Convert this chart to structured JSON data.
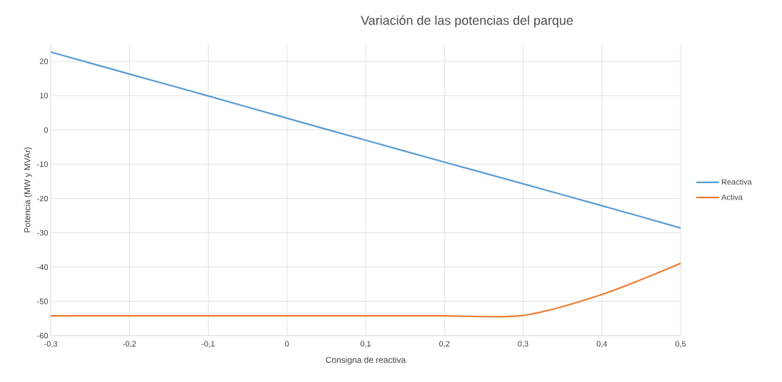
{
  "chart_data": {
    "type": "line",
    "title": "Variación de las potencias del parque",
    "xlabel": "Consigna de reactiva",
    "ylabel": "Potencia (MW y MVAr)",
    "x": [
      -0.3,
      -0.2,
      -0.1,
      0,
      0.1,
      0.2,
      0.3,
      0.4,
      0.5
    ],
    "series": [
      {
        "name": "Reactiva",
        "color": "#5b9bd5",
        "values": [
          22.7,
          16.3,
          9.9,
          3.4,
          -3.0,
          -9.4,
          -15.7,
          -22.1,
          -28.6
        ]
      },
      {
        "name": "Activa",
        "color": "#ed7d31",
        "values": [
          -54.2,
          -54.2,
          -54.2,
          -54.2,
          -54.2,
          -54.2,
          -54.1,
          -48.0,
          -38.9
        ]
      }
    ],
    "xlim": [
      -0.3,
      0.5
    ],
    "ylim": [
      -60,
      25
    ],
    "xticks": [
      {
        "value": -0.3,
        "label": "-0,3"
      },
      {
        "value": -0.2,
        "label": "-0,2"
      },
      {
        "value": -0.1,
        "label": "-0,1"
      },
      0,
      {
        "value": 0.1,
        "label": "0,1"
      },
      {
        "value": 0.2,
        "label": "0,2"
      },
      {
        "value": 0.3,
        "label": "0,3"
      },
      {
        "value": 0.4,
        "label": "0,4"
      },
      {
        "value": 0.5,
        "label": "0,5"
      }
    ],
    "yticks": [
      -60,
      -50,
      -40,
      -30,
      -20,
      -10,
      0,
      10,
      20
    ],
    "grid": true,
    "legend": "right",
    "marker": "none",
    "line_style": "solid"
  }
}
